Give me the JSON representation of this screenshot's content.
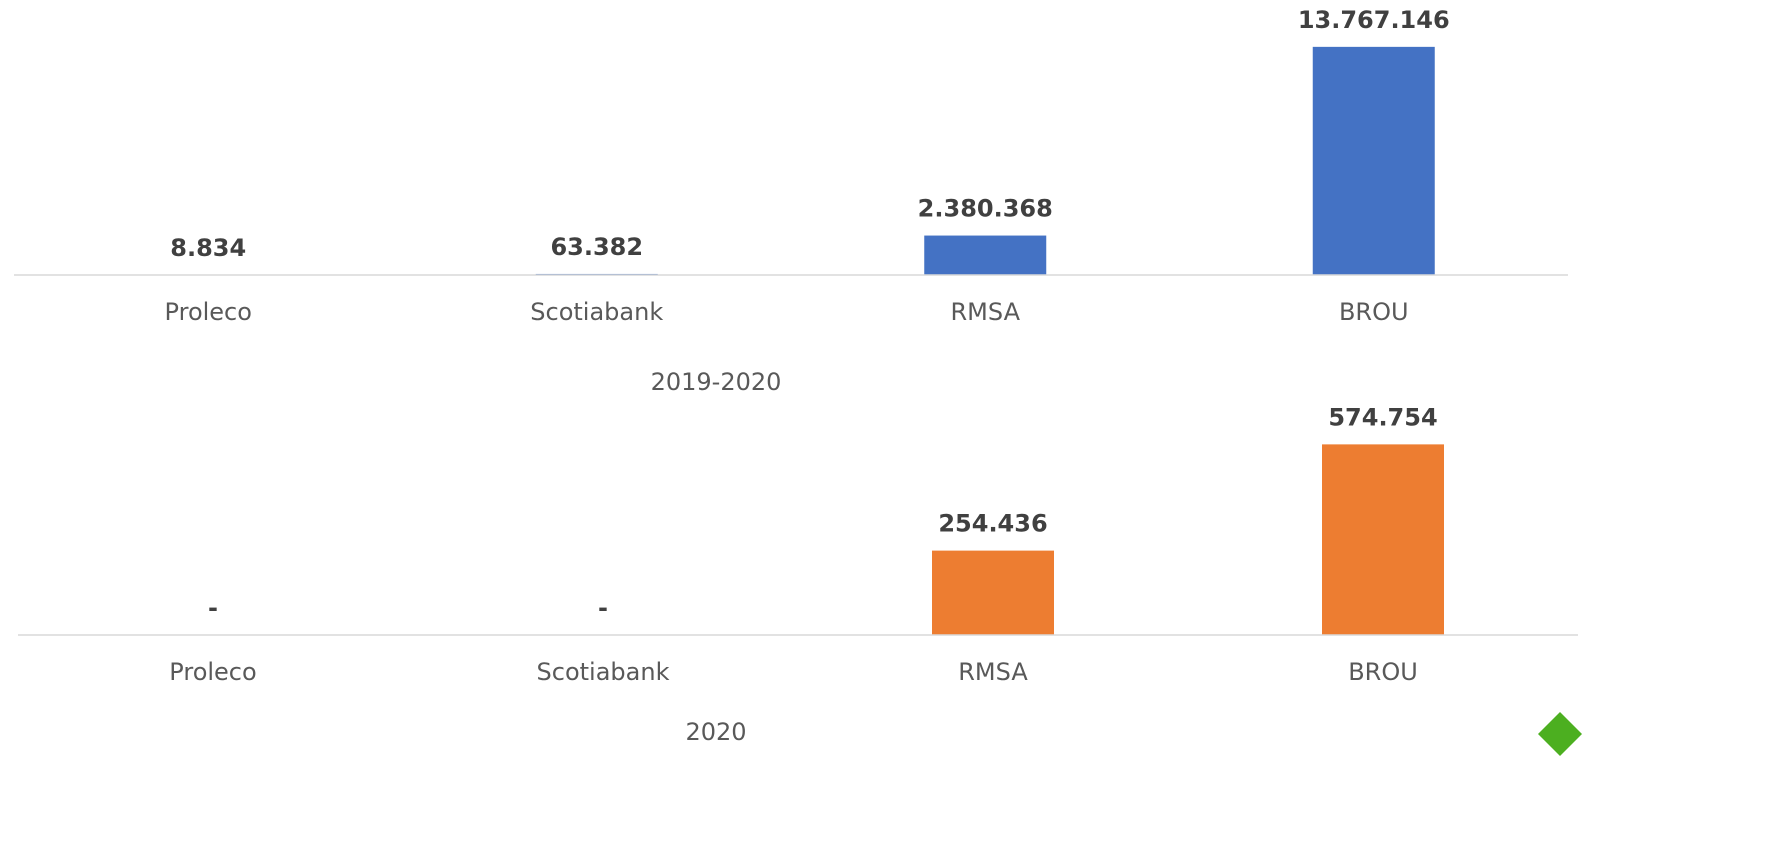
{
  "chart_data": [
    {
      "type": "bar",
      "title": "2019-2020",
      "categories": [
        "Proleco",
        "Scotiabank",
        "RMSA",
        "BROU"
      ],
      "values": [
        8834,
        63382,
        2380368,
        13767146
      ],
      "value_labels": [
        "8.834",
        "63.382",
        "2.380.368",
        "13.767.146"
      ],
      "color": "#4472c4",
      "ylim": [
        0,
        14000000
      ]
    },
    {
      "type": "bar",
      "title": "2020",
      "categories": [
        "Proleco",
        "Scotiabank",
        "RMSA",
        "BROU"
      ],
      "values": [
        0,
        0,
        254436,
        574754
      ],
      "value_labels": [
        "-",
        "-",
        "254.436",
        "574.754"
      ],
      "color": "#ed7d31",
      "ylim": [
        0,
        600000
      ]
    }
  ]
}
